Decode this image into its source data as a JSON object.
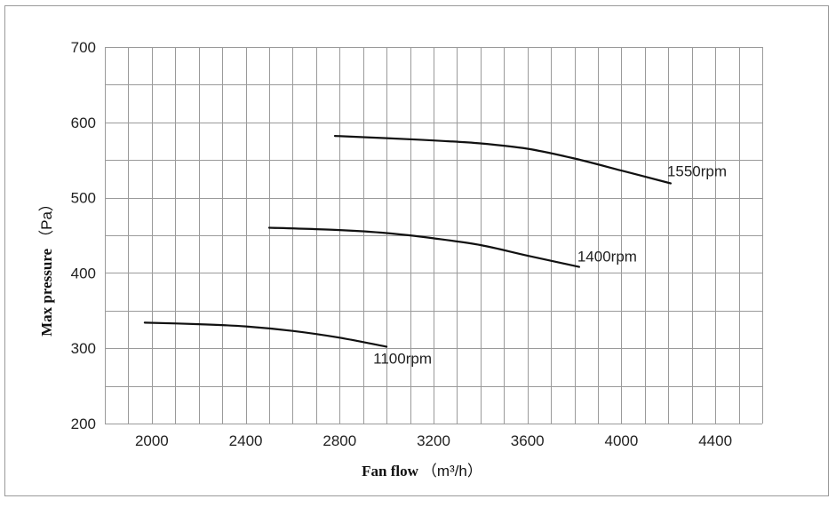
{
  "chart_data": {
    "type": "line",
    "title": "",
    "xlabel": "Fan flow",
    "xlabel_unit": "（m³/h）",
    "ylabel": "Max pressure",
    "ylabel_unit": "（Pa）",
    "xlim": [
      1800,
      4600
    ],
    "ylim": [
      200,
      700
    ],
    "x_ticks": [
      2000,
      2400,
      2800,
      3200,
      3600,
      4000,
      4400
    ],
    "y_ticks": [
      200,
      300,
      400,
      500,
      600,
      700
    ],
    "grid": true,
    "series": [
      {
        "name": "1100rpm",
        "points": [
          [
            1970,
            334
          ],
          [
            2200,
            332
          ],
          [
            2400,
            329
          ],
          [
            2600,
            323
          ],
          [
            2800,
            314
          ],
          [
            3000,
            302
          ]
        ]
      },
      {
        "name": "1400rpm",
        "points": [
          [
            2500,
            460
          ],
          [
            2800,
            457
          ],
          [
            3000,
            453
          ],
          [
            3200,
            446
          ],
          [
            3400,
            437
          ],
          [
            3600,
            423
          ],
          [
            3820,
            408
          ]
        ]
      },
      {
        "name": "1550rpm",
        "points": [
          [
            2780,
            582
          ],
          [
            3000,
            579
          ],
          [
            3200,
            576
          ],
          [
            3400,
            572
          ],
          [
            3600,
            565
          ],
          [
            3800,
            552
          ],
          [
            4000,
            536
          ],
          [
            4210,
            519
          ]
        ]
      }
    ]
  }
}
